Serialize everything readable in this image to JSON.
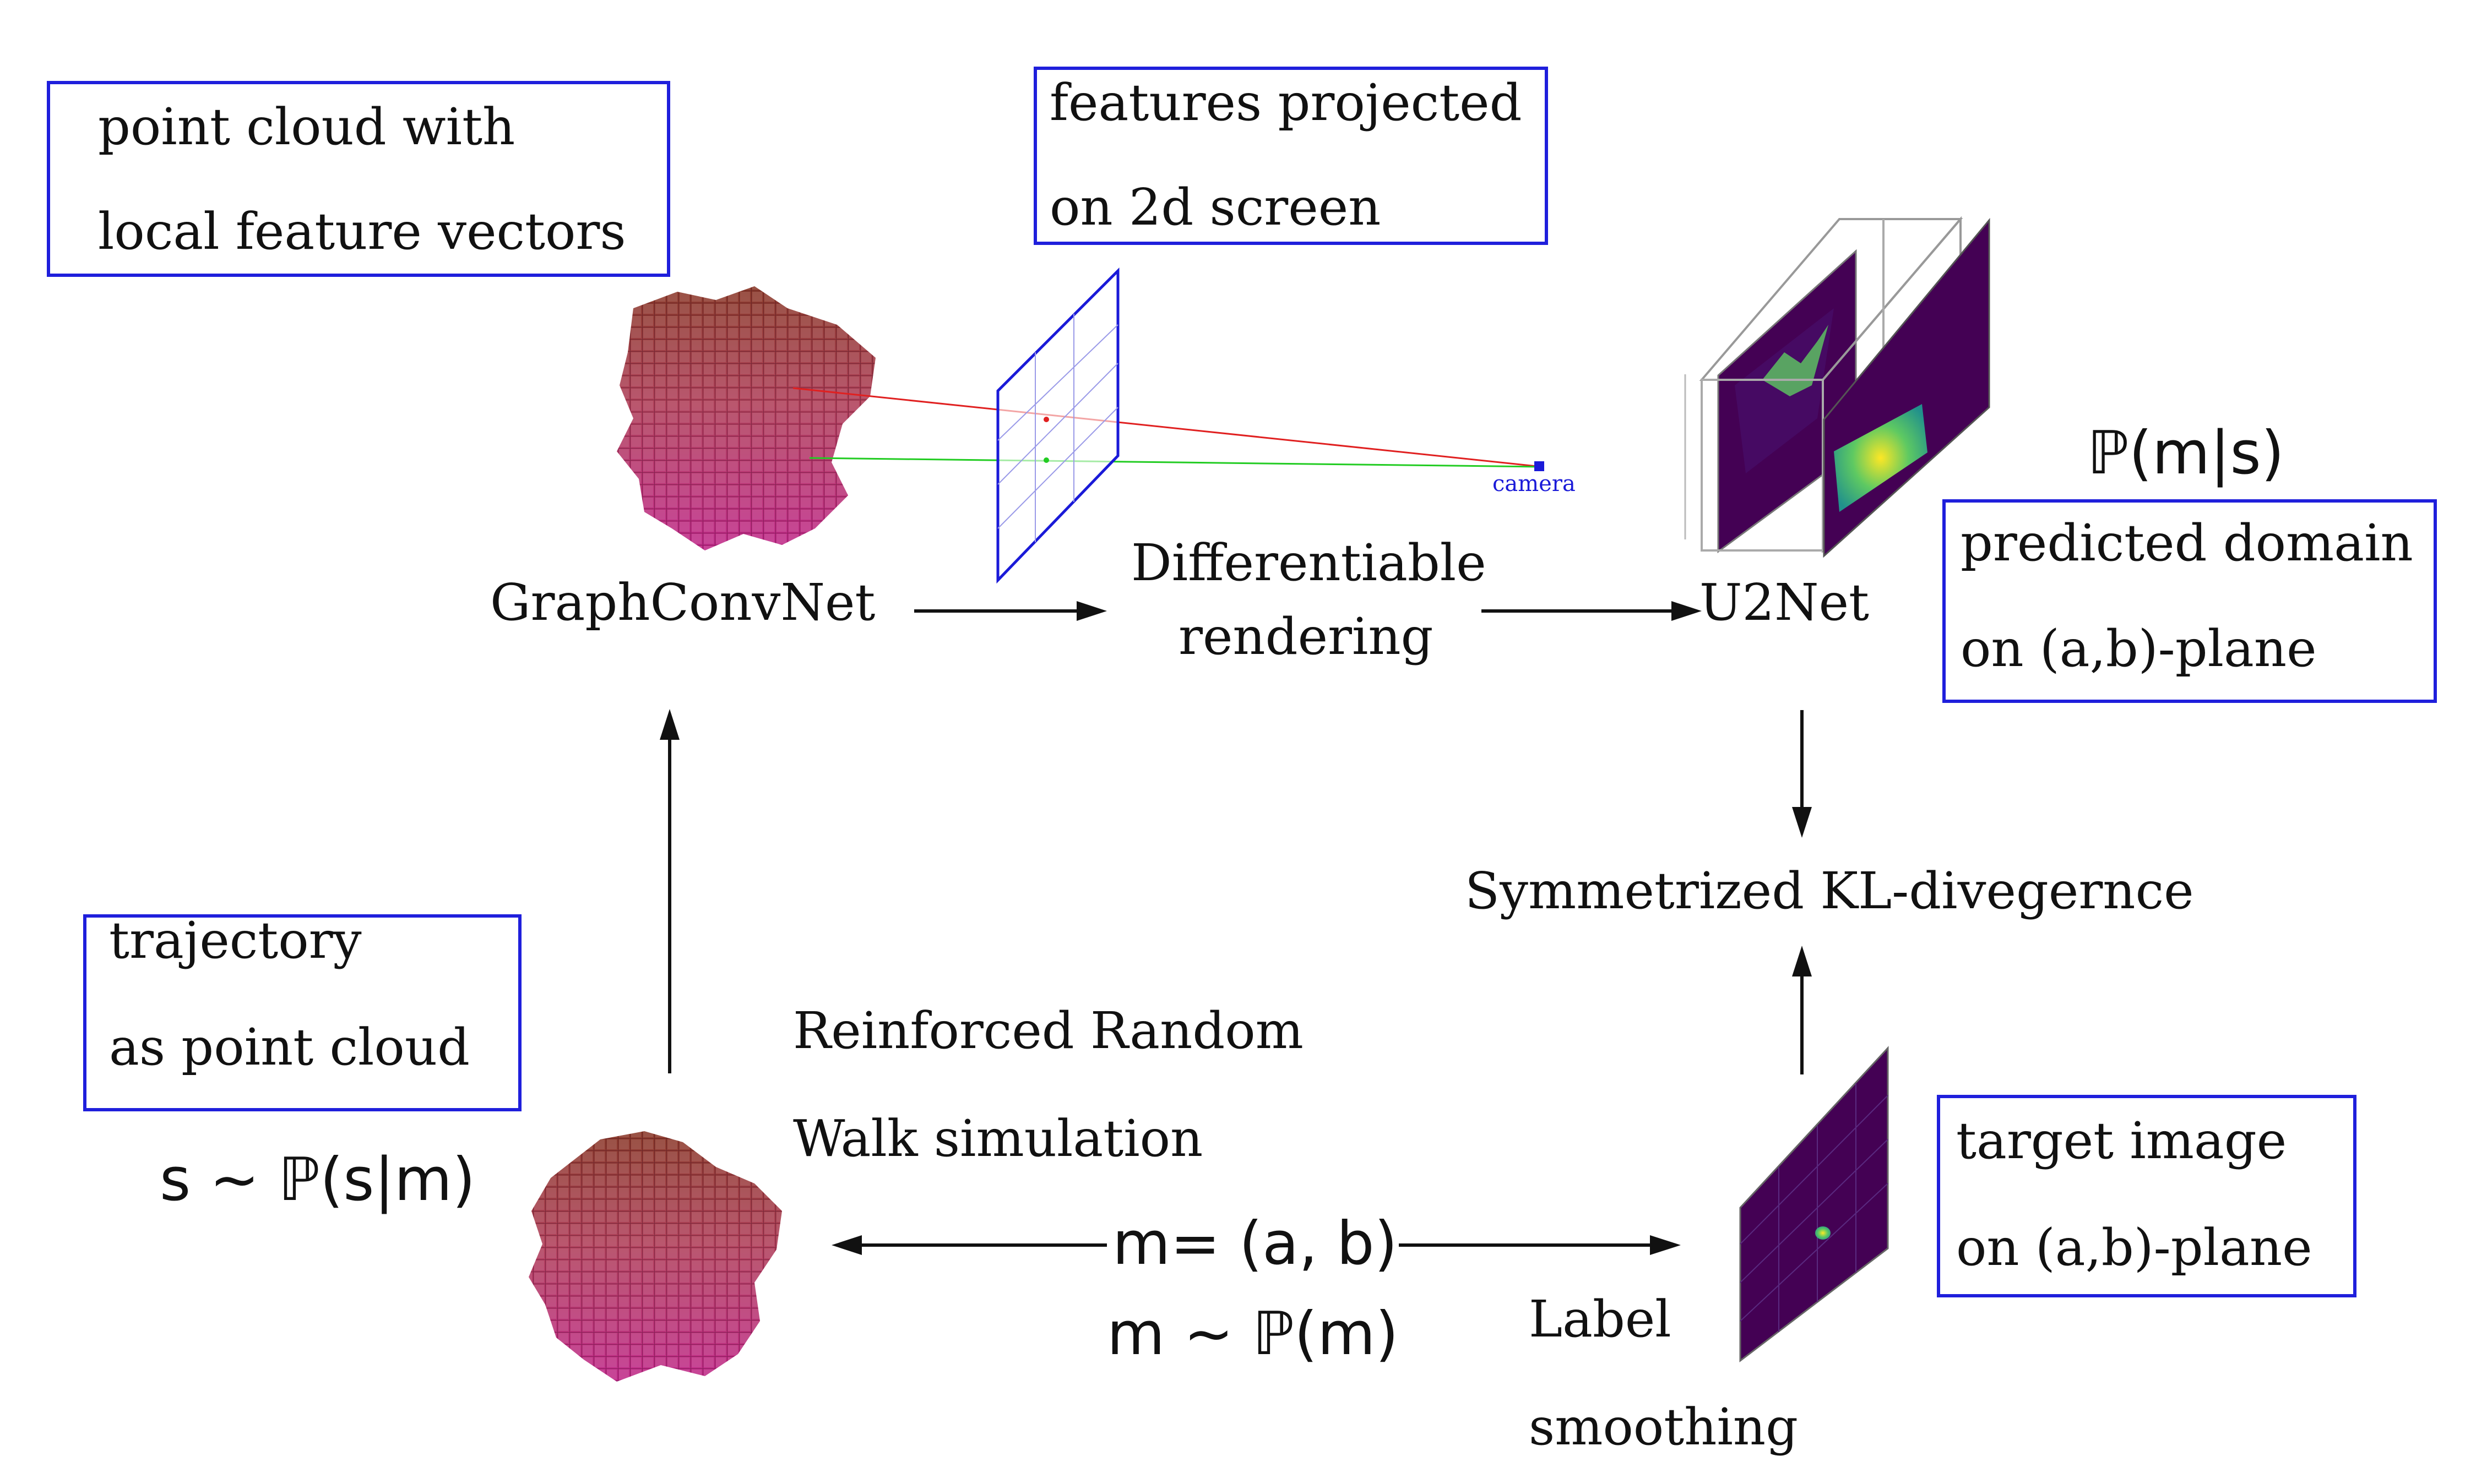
{
  "boxes": {
    "point_cloud": {
      "line1": "point  cloud  with",
      "line2": "local  feature  vectors"
    },
    "features_projected": {
      "line1": "features  projected",
      "line2": "on  2d  screen"
    },
    "predicted_domain": {
      "line1": "predicted  domain",
      "line2": "on  (a,b)-plane"
    },
    "trajectory": {
      "line1": "trajectory",
      "line2": "as  point  cloud"
    },
    "target_image": {
      "line1": "target  image",
      "line2": "on  (a,b)-plane"
    }
  },
  "labels": {
    "graphconvnet": "GraphConvNet",
    "diff_rendering_1": "Differentiable",
    "diff_rendering_2": "rendering",
    "u2net": "U2Net",
    "kl": "Symmetrized  KL-divegernce",
    "rrw_1": "Reinforced  Random",
    "rrw_2": "Walk  simulation",
    "label_smoothing_1": "Label",
    "label_smoothing_2": "smoothing",
    "camera": "camera"
  },
  "math": {
    "p_m_given_s": "ℙ(m|s)",
    "s_sim": "s ~ ℙ(s|m)",
    "m_eq": "m= (a,  b)",
    "m_sim": "m ~  ℙ(m)"
  },
  "colors": {
    "box_border": "#1f1fdc",
    "red_ray": "#e02020",
    "green_ray": "#22cc22",
    "plane_blue": "#1a1ad8",
    "heatmap_dark": "#440154",
    "heatmap_green": "#5ec962",
    "heatmap_yellow": "#fde725"
  }
}
